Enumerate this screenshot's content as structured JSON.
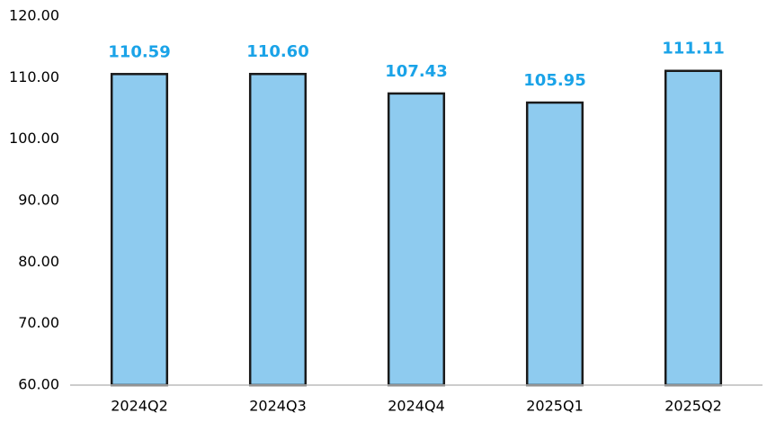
{
  "chart_data": {
    "type": "bar",
    "categories": [
      "2024Q2",
      "2024Q3",
      "2024Q4",
      "2025Q1",
      "2025Q2"
    ],
    "values": [
      110.59,
      110.6,
      107.43,
      105.95,
      111.11
    ],
    "value_labels": [
      "110.59",
      "110.60",
      "107.43",
      "105.95",
      "111.11"
    ],
    "color": "#8ecbef",
    "ylim": [
      60,
      120
    ],
    "yticks": [
      {
        "value": 60,
        "label": "60.00"
      },
      {
        "value": 70,
        "label": "70.00"
      },
      {
        "value": 80,
        "label": "80.00"
      },
      {
        "value": 90,
        "label": "90.00"
      },
      {
        "value": 100,
        "label": "100.00"
      },
      {
        "value": 110,
        "label": "110.00"
      },
      {
        "value": 120,
        "label": "120.00"
      }
    ],
    "grid": false
  }
}
